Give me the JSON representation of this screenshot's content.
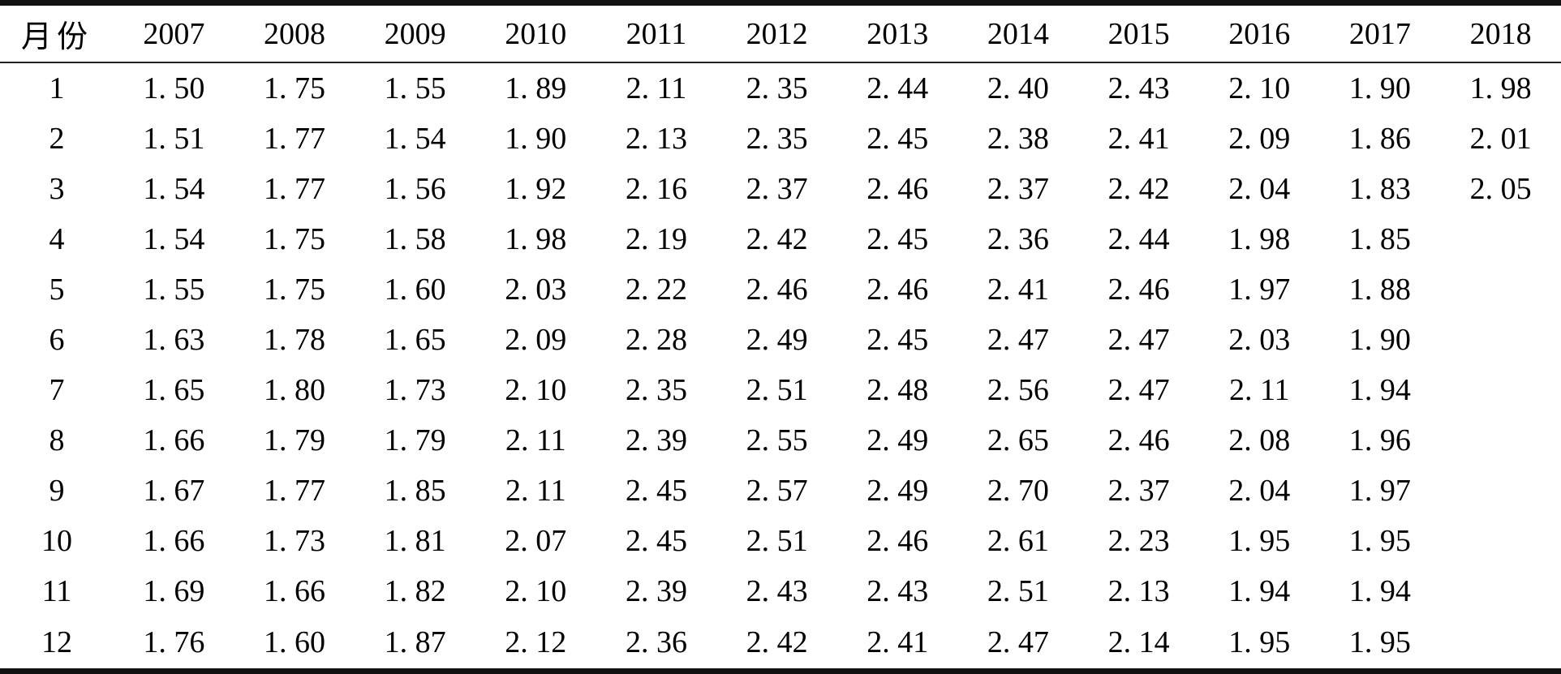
{
  "style": {
    "background": "#ffffff",
    "text_color": "#000000",
    "rule_color": "#111111"
  },
  "chart_data": {
    "type": "table",
    "title": "",
    "month_header": "月份",
    "columns": [
      "月份",
      "2007",
      "2008",
      "2009",
      "2010",
      "2011",
      "2012",
      "2013",
      "2014",
      "2015",
      "2016",
      "2017",
      "2018"
    ],
    "categories": [
      "1",
      "2",
      "3",
      "4",
      "5",
      "6",
      "7",
      "8",
      "9",
      "10",
      "11",
      "12"
    ],
    "series": [
      {
        "name": "2007",
        "values": [
          1.5,
          1.51,
          1.54,
          1.54,
          1.55,
          1.63,
          1.65,
          1.66,
          1.67,
          1.66,
          1.69,
          1.76
        ]
      },
      {
        "name": "2008",
        "values": [
          1.75,
          1.77,
          1.77,
          1.75,
          1.75,
          1.78,
          1.8,
          1.79,
          1.77,
          1.73,
          1.66,
          1.6
        ]
      },
      {
        "name": "2009",
        "values": [
          1.55,
          1.54,
          1.56,
          1.58,
          1.6,
          1.65,
          1.73,
          1.79,
          1.85,
          1.81,
          1.82,
          1.87
        ]
      },
      {
        "name": "2010",
        "values": [
          1.89,
          1.9,
          1.92,
          1.98,
          2.03,
          2.09,
          2.1,
          2.11,
          2.11,
          2.07,
          2.1,
          2.12
        ]
      },
      {
        "name": "2011",
        "values": [
          2.11,
          2.13,
          2.16,
          2.19,
          2.22,
          2.28,
          2.35,
          2.39,
          2.45,
          2.45,
          2.39,
          2.36
        ]
      },
      {
        "name": "2012",
        "values": [
          2.35,
          2.35,
          2.37,
          2.42,
          2.46,
          2.49,
          2.51,
          2.55,
          2.57,
          2.51,
          2.43,
          2.42
        ]
      },
      {
        "name": "2013",
        "values": [
          2.44,
          2.45,
          2.46,
          2.45,
          2.46,
          2.45,
          2.48,
          2.49,
          2.49,
          2.46,
          2.43,
          2.41
        ]
      },
      {
        "name": "2014",
        "values": [
          2.4,
          2.38,
          2.37,
          2.36,
          2.41,
          2.47,
          2.56,
          2.65,
          2.7,
          2.61,
          2.51,
          2.47
        ]
      },
      {
        "name": "2015",
        "values": [
          2.43,
          2.41,
          2.42,
          2.44,
          2.46,
          2.47,
          2.47,
          2.46,
          2.37,
          2.23,
          2.13,
          2.14
        ]
      },
      {
        "name": "2016",
        "values": [
          2.1,
          2.09,
          2.04,
          1.98,
          1.97,
          2.03,
          2.11,
          2.08,
          2.04,
          1.95,
          1.94,
          1.95
        ]
      },
      {
        "name": "2017",
        "values": [
          1.9,
          1.86,
          1.83,
          1.85,
          1.88,
          1.9,
          1.94,
          1.96,
          1.97,
          1.95,
          1.94,
          1.95
        ]
      },
      {
        "name": "2018",
        "values": [
          1.98,
          2.01,
          2.05,
          null,
          null,
          null,
          null,
          null,
          null,
          null,
          null,
          null
        ]
      }
    ]
  }
}
